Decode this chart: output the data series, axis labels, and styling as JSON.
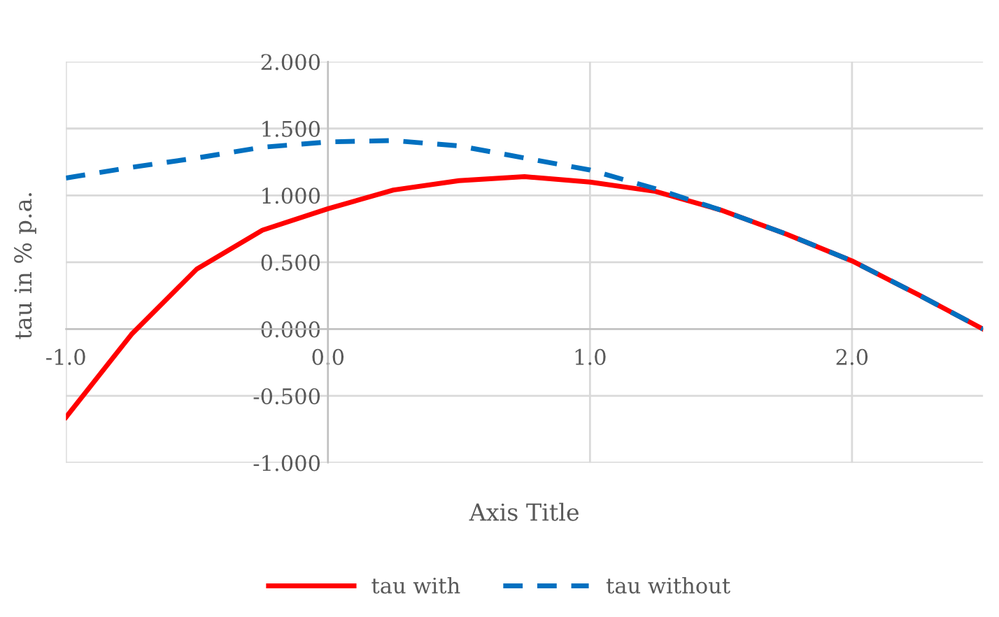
{
  "chart_data": {
    "type": "line",
    "xlabel": "Axis Title",
    "ylabel": "tau in % p.a.",
    "xlim": [
      -1.0,
      2.5
    ],
    "xticks": [
      {
        "value": -1,
        "label": "-1.0"
      },
      {
        "value": 0,
        "label": "0.0"
      },
      {
        "value": 1,
        "label": "1.0"
      },
      {
        "value": 2,
        "label": "2.0"
      }
    ],
    "ylim": [
      -1.0,
      2.0
    ],
    "yticks": [
      {
        "value": -1,
        "label": "-1.000"
      },
      {
        "value": -0.5,
        "label": "-0.500"
      },
      {
        "value": 0,
        "label": "0.000"
      },
      {
        "value": 0.5,
        "label": "0.500"
      },
      {
        "value": 1,
        "label": "1.000"
      },
      {
        "value": 1.5,
        "label": "1.500"
      },
      {
        "value": 2,
        "label": "2.000"
      }
    ],
    "grid": true,
    "legend": "bottom",
    "marker": "none",
    "series": [
      {
        "name": "tau with",
        "color": "#ff0000",
        "line_style": "solid",
        "x": [
          -1.0,
          -0.75,
          -0.5,
          -0.25,
          0.0,
          0.25,
          0.5,
          0.75,
          1.0,
          1.25,
          1.5,
          1.75,
          2.0,
          2.25,
          2.5
        ],
        "values": [
          -0.66,
          -0.04,
          0.45,
          0.74,
          0.9,
          1.04,
          1.11,
          1.14,
          1.1,
          1.03,
          0.89,
          0.71,
          0.51,
          0.26,
          0.0
        ]
      },
      {
        "name": "tau without",
        "color": "#0070c0",
        "line_style": "dashed",
        "x": [
          -1.0,
          -0.75,
          -0.5,
          -0.25,
          0.0,
          0.25,
          0.5,
          0.75,
          1.0,
          1.25,
          1.5,
          1.75,
          2.0,
          2.25,
          2.5
        ],
        "values": [
          1.13,
          1.21,
          1.28,
          1.36,
          1.4,
          1.41,
          1.37,
          1.28,
          1.19,
          1.05,
          0.89,
          0.71,
          0.51,
          0.26,
          0.0
        ]
      }
    ]
  }
}
